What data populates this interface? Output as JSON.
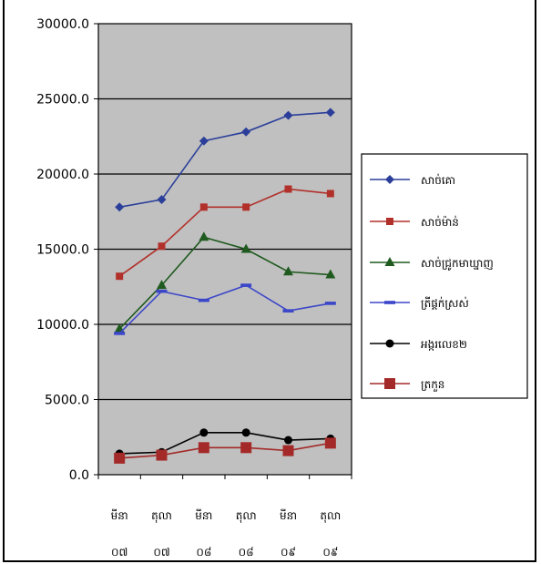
{
  "chart_data": {
    "type": "line",
    "title": "",
    "xlabel": "",
    "ylabel": "",
    "ylim": [
      0,
      30000
    ],
    "yticks": [
      "0.0",
      "5000.0",
      "10000.0",
      "15000.0",
      "20000.0",
      "25000.0",
      "30000.0"
    ],
    "grid": true,
    "legend_position": "right",
    "categories": [
      [
        "មីនា",
        "០៧"
      ],
      [
        "តុលា",
        "០៧"
      ],
      [
        "មីនា",
        "០៨"
      ],
      [
        "តុលា",
        "០៨"
      ],
      [
        "មីនា",
        "០៩"
      ],
      [
        "តុលា",
        "០៩"
      ]
    ],
    "series": [
      {
        "name": "សាច់គោ",
        "color": "#2b3f9a",
        "marker": "diamond",
        "values": [
          17800,
          18300,
          22200,
          22800,
          23900,
          24100
        ]
      },
      {
        "name": "សាច់ម៉ាន់",
        "color": "#b2302a",
        "marker": "square-small",
        "values": [
          13200,
          15200,
          17800,
          17800,
          19000,
          18700
        ]
      },
      {
        "name": "សាច់ជ្រូកមាឃ្នាញ",
        "color": "#1f5a1f",
        "marker": "triangle",
        "values": [
          9700,
          12600,
          15800,
          15000,
          13500,
          13300
        ]
      },
      {
        "name": "ត្រីផ្តក់ស្រស់",
        "color": "#3b46c8",
        "marker": "dash",
        "values": [
          9400,
          12200,
          11600,
          12600,
          10900,
          11400
        ]
      },
      {
        "name": "អង្ករលេខ២",
        "color": "#000000",
        "marker": "circle",
        "values": [
          1400,
          1500,
          2800,
          2800,
          2300,
          2400
        ]
      },
      {
        "name": "ត្រកួន",
        "color": "#a32a28",
        "marker": "square",
        "values": [
          1100,
          1300,
          1800,
          1800,
          1600,
          2100
        ]
      }
    ]
  }
}
